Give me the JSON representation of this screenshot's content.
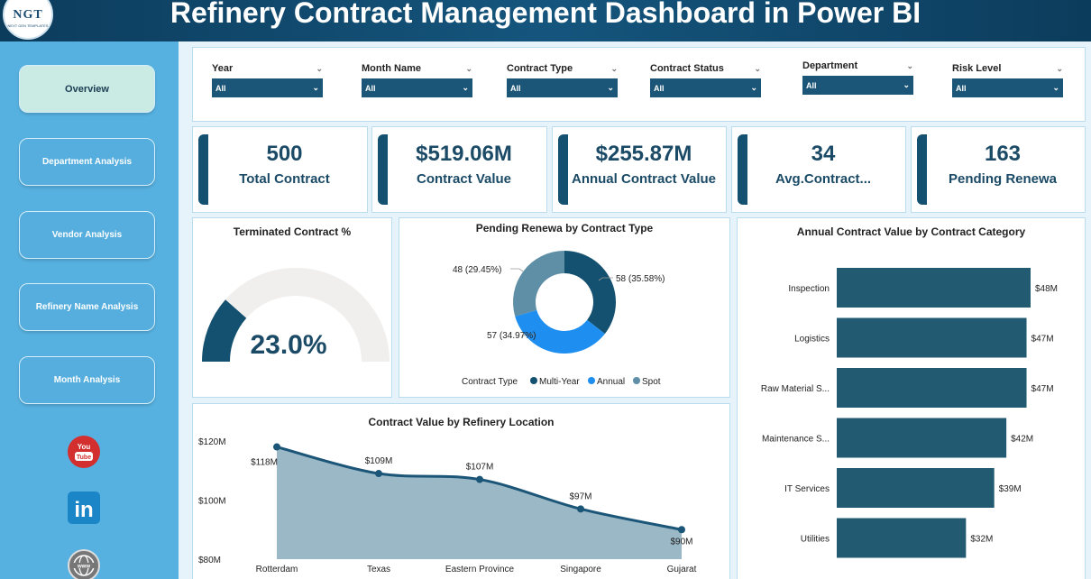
{
  "header": {
    "title": "Refinery Contract Management Dashboard in Power BI",
    "logo_text": "NGT",
    "logo_sub": "NEXT GEN TEMPLATES"
  },
  "sidebar": {
    "items": [
      {
        "label": "Overview",
        "active": true
      },
      {
        "label": "Department Analysis"
      },
      {
        "label": "Vendor Analysis"
      },
      {
        "label": "Refinery Name Analysis"
      },
      {
        "label": "Month Analysis"
      }
    ],
    "social": [
      {
        "icon": "youtube-icon",
        "label": "You Tube"
      },
      {
        "icon": "linkedin-icon",
        "label": "in"
      },
      {
        "icon": "website-icon",
        "label": "www"
      }
    ]
  },
  "filters": [
    {
      "label": "Year",
      "value": "All"
    },
    {
      "label": "Month Name",
      "value": "All"
    },
    {
      "label": "Contract Type",
      "value": "All"
    },
    {
      "label": "Contract Status",
      "value": "All"
    },
    {
      "label": "Department",
      "value": "All"
    },
    {
      "label": "Risk Level",
      "value": "All"
    }
  ],
  "kpis": [
    {
      "value": "500",
      "label": "Total Contract"
    },
    {
      "value": "$519.06M",
      "label": "Contract Value"
    },
    {
      "value": "$255.87M",
      "label": "Annual Contract Value"
    },
    {
      "value": "34",
      "label": "Avg.Contract..."
    },
    {
      "value": "163",
      "label": "Pending Renewa"
    }
  ],
  "colors": {
    "dark": "#14506f",
    "mid": "#1e8ff0",
    "light": "#5f8fa6",
    "bar": "#225a72",
    "area": "#9ab8c6"
  },
  "chart_data": [
    {
      "type": "gauge",
      "title": "Terminated Contract %",
      "value": 23.0,
      "value_label": "23.0%",
      "range": [
        0,
        100
      ]
    },
    {
      "type": "pie",
      "title": "Pending Renewa by Contract Type",
      "legend_title": "Contract Type",
      "legend_position": "bottom",
      "categories": [
        "Multi-Year",
        "Annual",
        "Spot"
      ],
      "values": [
        58,
        57,
        48
      ],
      "labels": [
        "58 (35.58%)",
        "57 (34.97%)",
        "48 (29.45%)"
      ]
    },
    {
      "type": "bar",
      "orientation": "horizontal",
      "title": "Annual Contract Value by Contract Category",
      "categories": [
        "Inspection",
        "Logistics",
        "Raw Material S...",
        "Maintenance S...",
        "IT Services",
        "Utilities"
      ],
      "values": [
        48,
        47,
        47,
        42,
        39,
        32
      ],
      "labels": [
        "$48M",
        "$47M",
        "$47M",
        "$42M",
        "$39M",
        "$32M"
      ]
    },
    {
      "type": "area",
      "title": "Contract Value by Refinery Location",
      "categories": [
        "Rotterdam",
        "Texas",
        "Eastern Province",
        "Singapore",
        "Gujarat"
      ],
      "values": [
        118,
        109,
        107,
        97,
        90
      ],
      "labels": [
        "$118M",
        "$109M",
        "$107M",
        "$97M",
        "$90M"
      ],
      "yticks": [
        "$120M",
        "$100M",
        "$80M"
      ],
      "ylim": [
        80,
        120
      ],
      "grid": false
    }
  ]
}
